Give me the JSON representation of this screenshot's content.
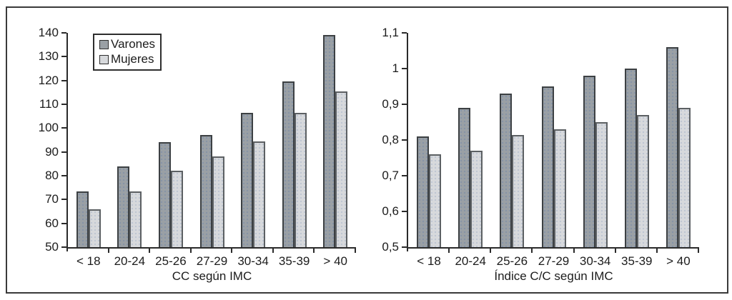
{
  "figure": {
    "background": "#ffffff",
    "frame_border_color": "#3a3a3a",
    "axis_color": "#2a2a2a",
    "text_color": "#1c1c1c",
    "legend": {
      "items": [
        {
          "label": "Varones",
          "color": "#9aa0a5",
          "border": "#3c4043",
          "swatch_icon": "filled-square-icon"
        },
        {
          "label": "Mujeres",
          "color": "#d7d9dc",
          "border": "#5c6063",
          "swatch_icon": "filled-square-icon"
        }
      ]
    }
  },
  "chart_data": [
    {
      "type": "bar",
      "title": "",
      "xlabel": "CC según IMC",
      "ylabel": "",
      "categories": [
        "< 18",
        "20-24",
        "25-26",
        "27-29",
        "30-34",
        "35-39",
        "> 40"
      ],
      "series": [
        {
          "name": "Varones",
          "values": [
            73.5,
            84,
            94,
            97,
            106.5,
            119.5,
            139
          ]
        },
        {
          "name": "Mujeres",
          "values": [
            66,
            73.5,
            82,
            88,
            94.5,
            106.5,
            115.5
          ]
        }
      ],
      "ylim": [
        50,
        140
      ],
      "yticks": [
        50,
        60,
        70,
        80,
        90,
        100,
        110,
        120,
        130,
        140
      ],
      "ytick_labels": [
        "50",
        "60",
        "70",
        "80",
        "90",
        "100",
        "110",
        "120",
        "130",
        "140"
      ],
      "grid": false,
      "legend_position": "top-left"
    },
    {
      "type": "bar",
      "title": "",
      "xlabel": "Índice C/C según IMC",
      "ylabel": "",
      "categories": [
        "< 18",
        "20-24",
        "25-26",
        "27-29",
        "30-34",
        "35-39",
        "> 40"
      ],
      "series": [
        {
          "name": "Varones",
          "values": [
            0.81,
            0.89,
            0.93,
            0.95,
            0.98,
            1.0,
            1.06
          ]
        },
        {
          "name": "Mujeres",
          "values": [
            0.76,
            0.77,
            0.815,
            0.83,
            0.85,
            0.87,
            0.89
          ]
        }
      ],
      "ylim": [
        0.5,
        1.1
      ],
      "yticks": [
        0.5,
        0.6,
        0.7,
        0.8,
        0.9,
        1.0,
        1.1
      ],
      "ytick_labels": [
        "0,5",
        "0,6",
        "0,7",
        "0,8",
        "0,9",
        "1",
        "1,1"
      ],
      "grid": false,
      "legend_position": "none"
    }
  ]
}
